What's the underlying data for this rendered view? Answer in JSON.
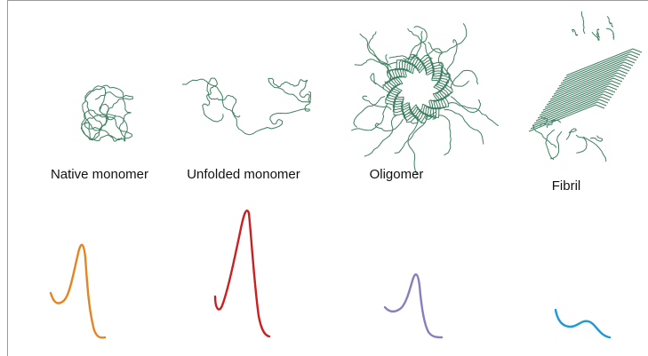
{
  "panels": [
    {
      "label": "Native monomer"
    },
    {
      "label": "Unfolded monomer"
    },
    {
      "label": "Oligomer"
    },
    {
      "label": "Fibril"
    }
  ]
}
